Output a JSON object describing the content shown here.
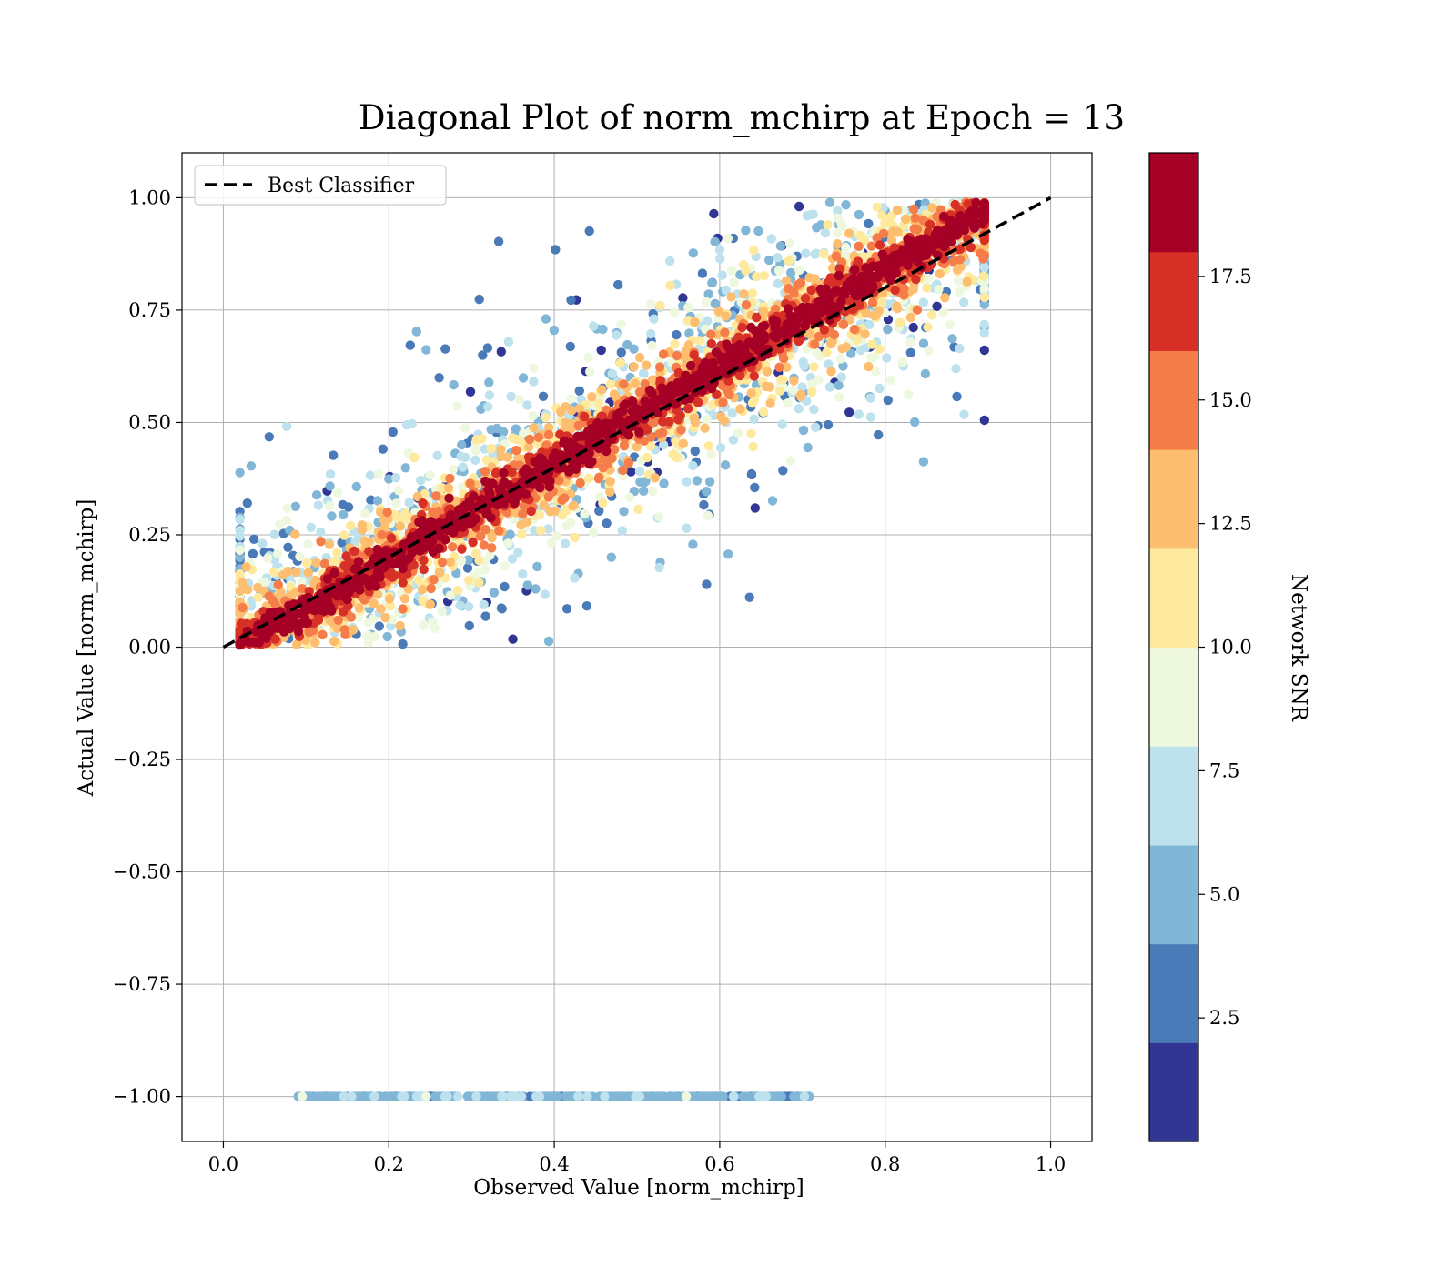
{
  "chart_data": {
    "type": "scatter",
    "title": "Diagonal Plot of norm_mchirp at Epoch = 13",
    "xlabel": "Observed Value [norm_mchirp]",
    "ylabel": "Actual Value [norm_mchirp]",
    "xlim": [
      -0.05,
      1.05
    ],
    "ylim": [
      -1.1,
      1.1
    ],
    "x_ticks": [
      "0.0",
      "0.2",
      "0.4",
      "0.6",
      "0.8",
      "1.0"
    ],
    "y_ticks": [
      "1.00",
      "0.75",
      "0.50",
      "0.25",
      "0.00",
      "−0.25",
      "−0.50",
      "−0.75",
      "−1.00"
    ],
    "grid": true,
    "legend": {
      "placement": "top-left",
      "entries": [
        "Best Classifier"
      ]
    },
    "reference_line": {
      "label": "Best Classifier",
      "x": [
        0.0,
        1.0
      ],
      "y": [
        0.0,
        1.0
      ],
      "style": "dashed",
      "color": "#000000"
    },
    "colorbar": {
      "label": "Network SNR",
      "range": [
        0.0,
        20.0
      ],
      "tick_labels": [
        "2.5",
        "5.0",
        "7.5",
        "10.0",
        "12.5",
        "15.0",
        "17.5"
      ],
      "tick_values": [
        2.5,
        5.0,
        7.5,
        10.0,
        12.5,
        15.0,
        17.5
      ],
      "bins": [
        0,
        2,
        4,
        6,
        8,
        10,
        12,
        14,
        16,
        18,
        20
      ],
      "colors": [
        "#313695",
        "#4a7ab7",
        "#82b6d6",
        "#bde2ee",
        "#eef8df",
        "#fee99d",
        "#fdbf6f",
        "#f57d4a",
        "#d73027",
        "#a50026"
      ]
    },
    "point_clusters": [
      {
        "description": "main diagonal band",
        "x_range": [
          0.02,
          0.92
        ],
        "y_relation": "y ≈ x with spread decreasing as SNR increases",
        "snr_range": [
          0,
          20
        ]
      },
      {
        "description": "failed predictions row",
        "y": -1.0,
        "x_range": [
          0.09,
          0.71
        ],
        "snr_typical": 4.5
      }
    ]
  }
}
